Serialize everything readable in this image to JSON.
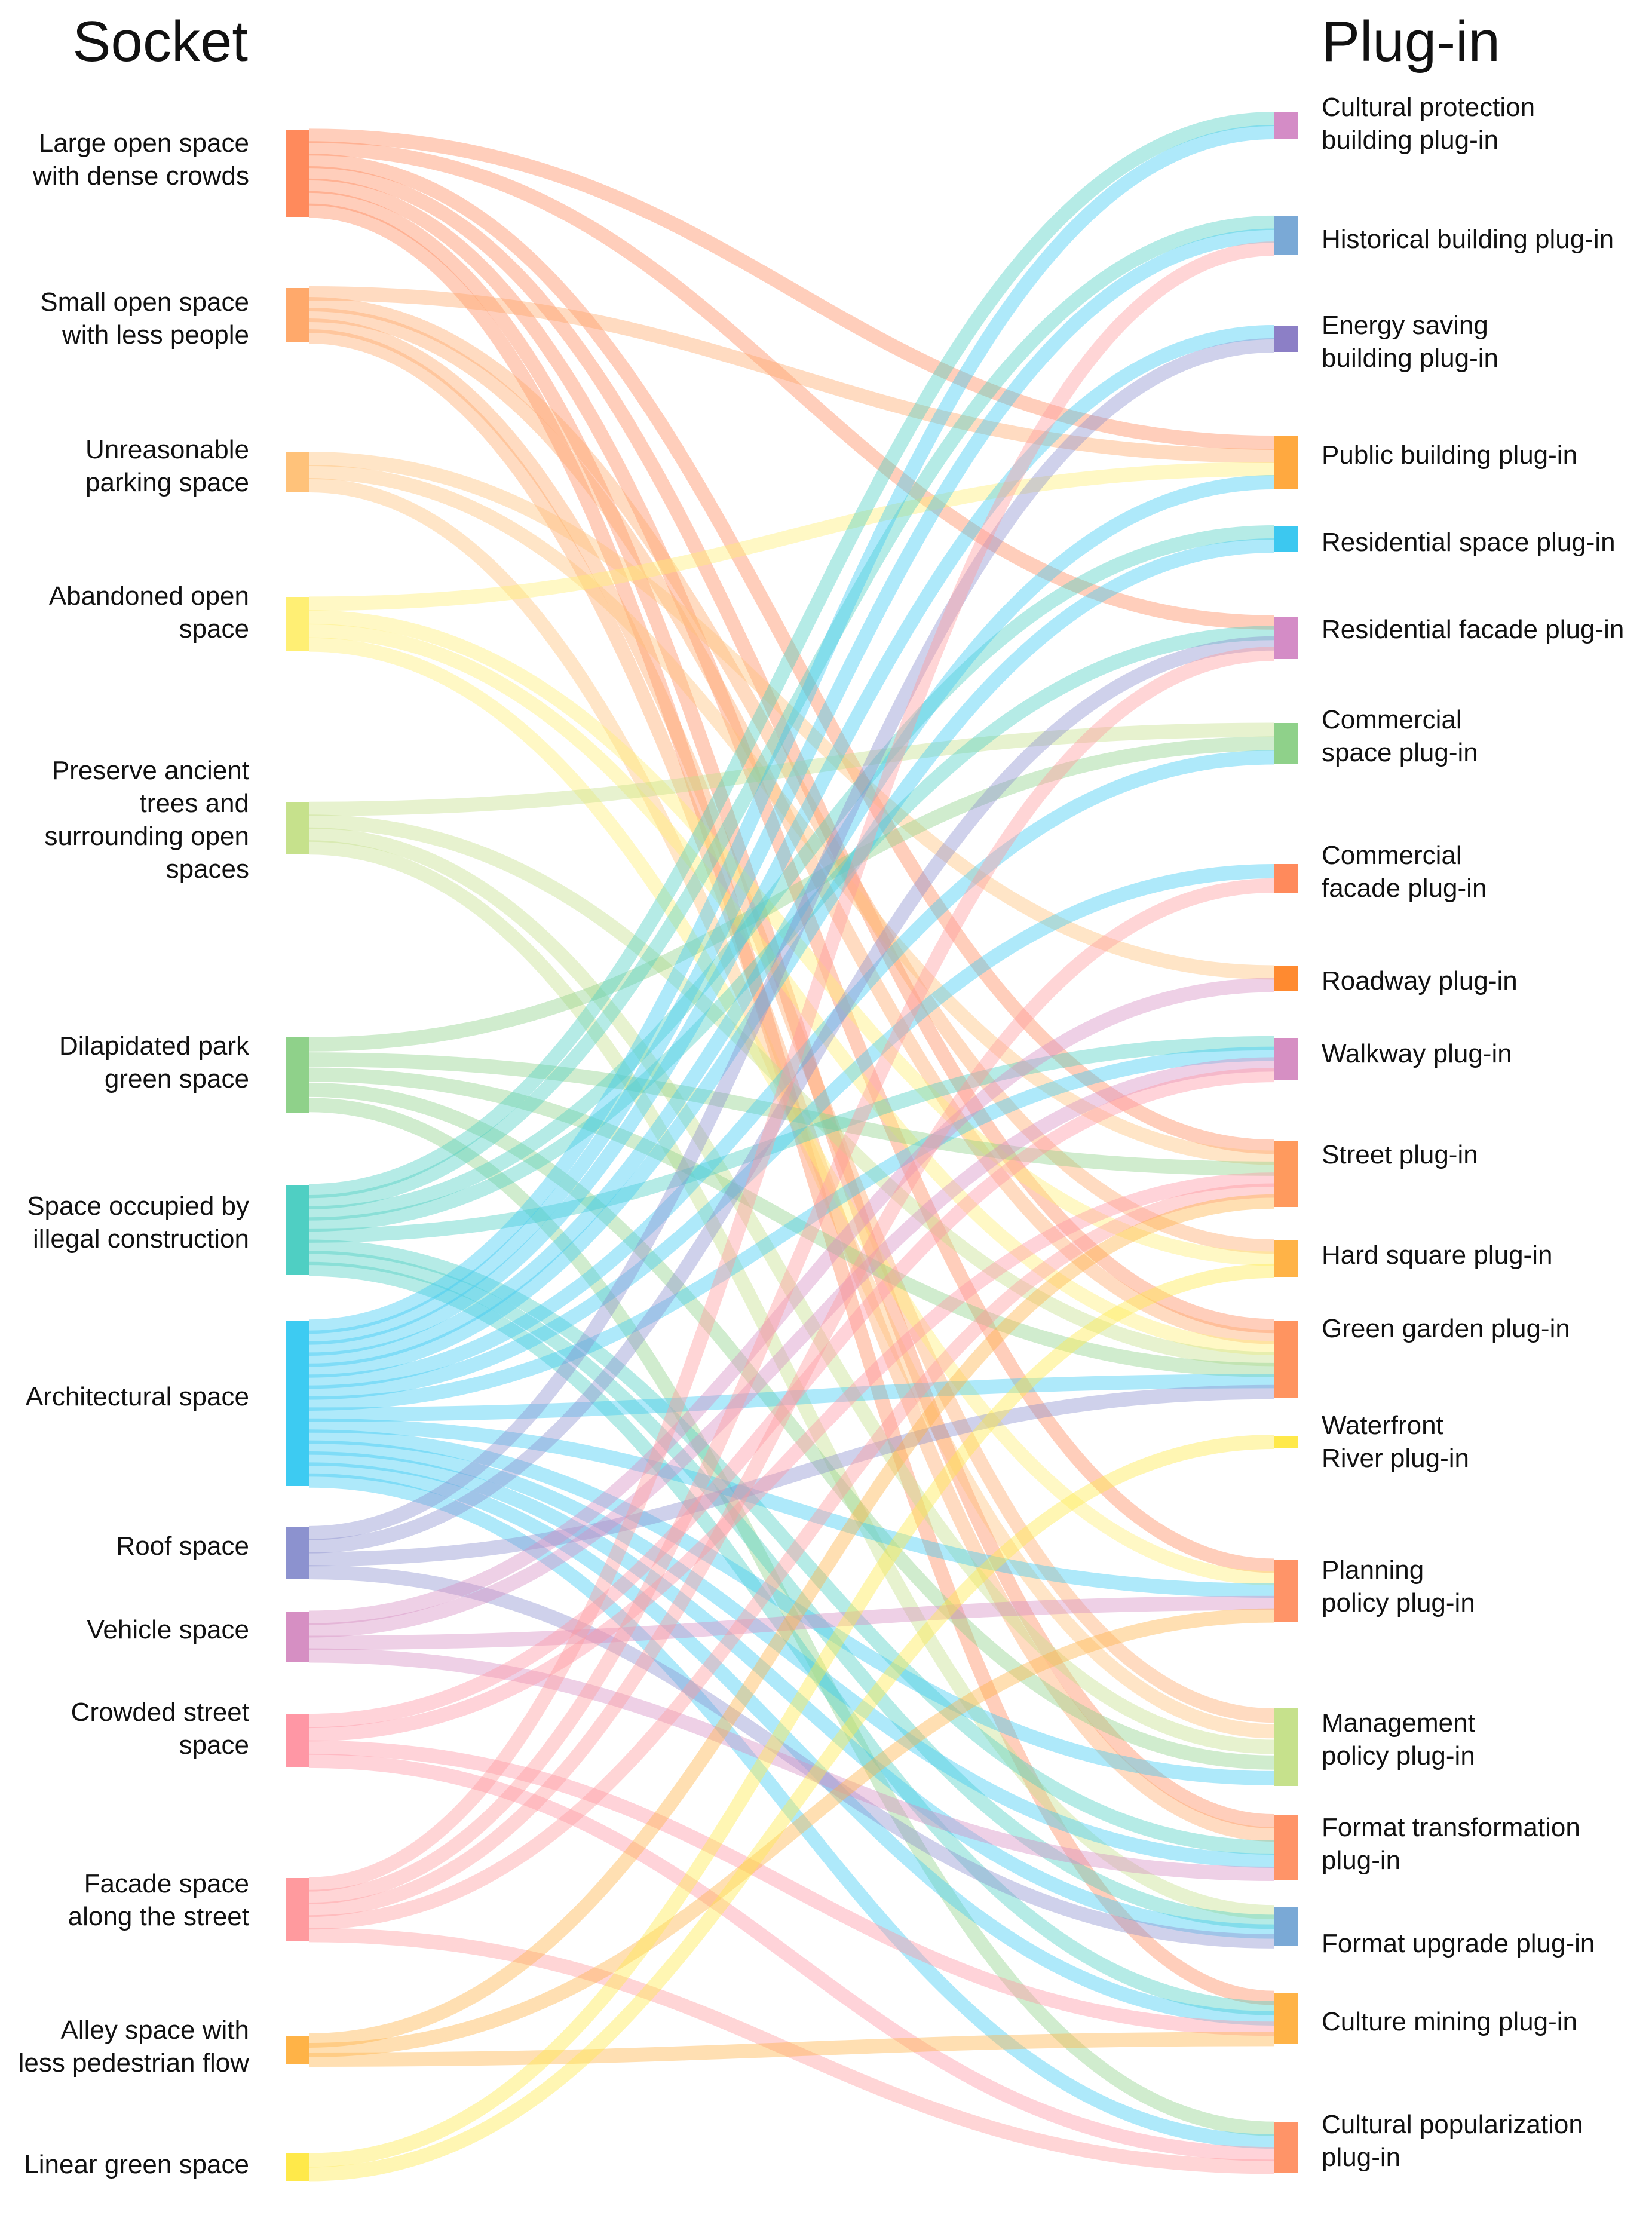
{
  "titles": {
    "left": "Socket",
    "right": "Plug-in"
  },
  "sockets": [
    {
      "id": "s0",
      "label": "Large open space\nwith dense crowds",
      "color": "#FF8A5C"
    },
    {
      "id": "s1",
      "label": "Small open space\nwith less people",
      "color": "#FFA96B"
    },
    {
      "id": "s2",
      "label": "Unreasonable\nparking space",
      "color": "#FFC27A"
    },
    {
      "id": "s3",
      "label": "Abandoned open\nspace",
      "color": "#FFEF74"
    },
    {
      "id": "s4",
      "label": "Preserve ancient\ntrees and\nsurrounding open\nspaces",
      "color": "#C6E18C"
    },
    {
      "id": "s5",
      "label": "Dilapidated park\ngreen space",
      "color": "#8FD18A"
    },
    {
      "id": "s6",
      "label": "Space occupied by\nillegal construction",
      "color": "#4FCFC3"
    },
    {
      "id": "s7",
      "label": "Architectural space",
      "color": "#3DCBF2"
    },
    {
      "id": "s8",
      "label": "Roof space",
      "color": "#8C92CF"
    },
    {
      "id": "s9",
      "label": "Vehicle space",
      "color": "#D68FC3"
    },
    {
      "id": "s10",
      "label": "Crowded street\nspace",
      "color": "#FF97A5"
    },
    {
      "id": "s11",
      "label": "Facade space\nalong the street",
      "color": "#FF9A9E"
    },
    {
      "id": "s12",
      "label": "Alley space with\nless pedestrian flow",
      "color": "#FFB347"
    },
    {
      "id": "s13",
      "label": "Linear green space",
      "color": "#FFE94A"
    }
  ],
  "plugins": [
    {
      "id": "p0",
      "label": "Cultural protection\nbuilding plug-in",
      "color": "#D48CC6"
    },
    {
      "id": "p1",
      "label": "Historical building plug-in",
      "color": "#7AA9D6"
    },
    {
      "id": "p2",
      "label": "Energy saving\nbuilding plug-in",
      "color": "#8C7FC6"
    },
    {
      "id": "p3",
      "label": "Public building plug-in",
      "color": "#FFA940"
    },
    {
      "id": "p4",
      "label": "Residential space plug-in",
      "color": "#3CC8F0"
    },
    {
      "id": "p5",
      "label": "Residential facade plug-in",
      "color": "#D48CC6"
    },
    {
      "id": "p6",
      "label": "Commercial\nspace plug-in",
      "color": "#8FD18A"
    },
    {
      "id": "p7",
      "label": "Commercial\nfacade plug-in",
      "color": "#FF8A5C"
    },
    {
      "id": "p8",
      "label": "Roadway plug-in",
      "color": "#FF8A30"
    },
    {
      "id": "p9",
      "label": "Walkway plug-in",
      "color": "#D68FC3"
    },
    {
      "id": "p10",
      "label": "Street plug-in",
      "color": "#FF9A5E"
    },
    {
      "id": "p11",
      "label": "Hard square plug-in",
      "color": "#FFB347"
    },
    {
      "id": "p12",
      "label": "Green garden plug-in",
      "color": "#FF9460"
    },
    {
      "id": "p13",
      "label": "Waterfront\nRiver plug-in",
      "color": "#FFE94A"
    },
    {
      "id": "p14",
      "label": "Planning\npolicy plug-in",
      "color": "#FF9468"
    },
    {
      "id": "p15",
      "label": "Management\npolicy plug-in",
      "color": "#C6E18C"
    },
    {
      "id": "p16",
      "label": "Format transformation\nplug-in",
      "color": "#FF9468"
    },
    {
      "id": "p17",
      "label": "Format upgrade plug-in",
      "color": "#7AA9D6"
    },
    {
      "id": "p18",
      "label": "Culture mining plug-in",
      "color": "#FFB347"
    },
    {
      "id": "p19",
      "label": "Cultural popularization\nplug-in",
      "color": "#FF9468"
    }
  ],
  "links": [
    [
      "s0",
      "p3"
    ],
    [
      "s0",
      "p10"
    ],
    [
      "s0",
      "p12"
    ],
    [
      "s0",
      "p14"
    ],
    [
      "s0",
      "p16"
    ],
    [
      "s0",
      "p18"
    ],
    [
      "s0",
      "p5"
    ],
    [
      "s1",
      "p3"
    ],
    [
      "s1",
      "p11"
    ],
    [
      "s1",
      "p12"
    ],
    [
      "s1",
      "p15"
    ],
    [
      "s1",
      "p16"
    ],
    [
      "s2",
      "p8"
    ],
    [
      "s2",
      "p10"
    ],
    [
      "s2",
      "p15"
    ],
    [
      "s3",
      "p3"
    ],
    [
      "s3",
      "p11"
    ],
    [
      "s3",
      "p12"
    ],
    [
      "s3",
      "p14"
    ],
    [
      "s4",
      "p6"
    ],
    [
      "s4",
      "p12"
    ],
    [
      "s4",
      "p15"
    ],
    [
      "s4",
      "p17"
    ],
    [
      "s5",
      "p6"
    ],
    [
      "s5",
      "p10"
    ],
    [
      "s5",
      "p12"
    ],
    [
      "s5",
      "p15"
    ],
    [
      "s5",
      "p19"
    ],
    [
      "s6",
      "p0"
    ],
    [
      "s6",
      "p1"
    ],
    [
      "s6",
      "p4"
    ],
    [
      "s6",
      "p5"
    ],
    [
      "s6",
      "p9"
    ],
    [
      "s6",
      "p16"
    ],
    [
      "s6",
      "p17"
    ],
    [
      "s6",
      "p18"
    ],
    [
      "s7",
      "p0"
    ],
    [
      "s7",
      "p1"
    ],
    [
      "s7",
      "p2"
    ],
    [
      "s7",
      "p3"
    ],
    [
      "s7",
      "p4"
    ],
    [
      "s7",
      "p6"
    ],
    [
      "s7",
      "p7"
    ],
    [
      "s7",
      "p9"
    ],
    [
      "s7",
      "p12"
    ],
    [
      "s7",
      "p14"
    ],
    [
      "s7",
      "p15"
    ],
    [
      "s7",
      "p16"
    ],
    [
      "s7",
      "p17"
    ],
    [
      "s7",
      "p18"
    ],
    [
      "s7",
      "p19"
    ],
    [
      "s8",
      "p2"
    ],
    [
      "s8",
      "p5"
    ],
    [
      "s8",
      "p12"
    ],
    [
      "s8",
      "p17"
    ],
    [
      "s9",
      "p8"
    ],
    [
      "s9",
      "p9"
    ],
    [
      "s9",
      "p14"
    ],
    [
      "s9",
      "p16"
    ],
    [
      "s10",
      "p9"
    ],
    [
      "s10",
      "p10"
    ],
    [
      "s10",
      "p18"
    ],
    [
      "s10",
      "p19"
    ],
    [
      "s11",
      "p1"
    ],
    [
      "s11",
      "p5"
    ],
    [
      "s11",
      "p7"
    ],
    [
      "s11",
      "p10"
    ],
    [
      "s11",
      "p19"
    ],
    [
      "s12",
      "p10"
    ],
    [
      "s12",
      "p14"
    ],
    [
      "s12",
      "p18"
    ],
    [
      "s13",
      "p11"
    ],
    [
      "s13",
      "p13"
    ]
  ]
}
